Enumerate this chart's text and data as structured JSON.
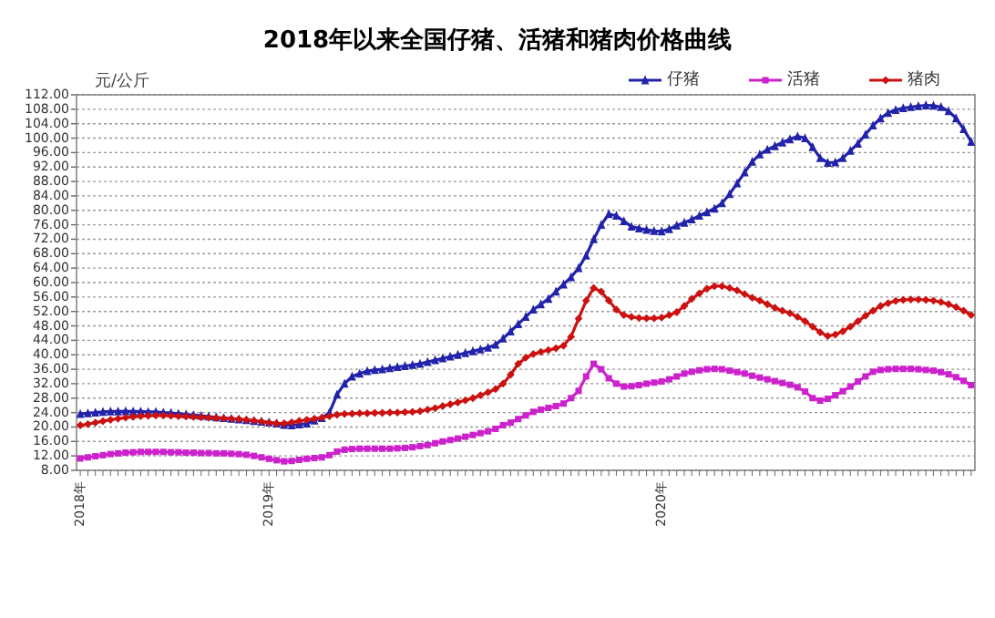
{
  "chart_data": {
    "type": "line",
    "title": "2018年以来全国仔猪、活猪和猪肉价格曲线",
    "ylabel": "元/公斤",
    "categories": [
      "2018年",
      null,
      null,
      null,
      null,
      null,
      null,
      null,
      null,
      null,
      null,
      null,
      null,
      null,
      null,
      null,
      null,
      null,
      null,
      null,
      null,
      null,
      null,
      null,
      null,
      "2019年",
      null,
      null,
      null,
      null,
      null,
      null,
      null,
      null,
      null,
      null,
      null,
      null,
      null,
      null,
      null,
      null,
      null,
      null,
      null,
      null,
      null,
      null,
      null,
      null,
      null,
      null,
      null,
      null,
      null,
      null,
      null,
      null,
      null,
      null,
      null,
      null,
      null,
      null,
      null,
      null,
      null,
      null,
      null,
      null,
      null,
      null,
      null,
      null,
      null,
      null,
      null,
      "2020年",
      null,
      null,
      null,
      null,
      null,
      null,
      null,
      null,
      null,
      null,
      null,
      null,
      null,
      null,
      null,
      null,
      null,
      null,
      null,
      null,
      null,
      null,
      null,
      null,
      null,
      null,
      null,
      null,
      null,
      null,
      null,
      null,
      null,
      null,
      null,
      null,
      null,
      null,
      null,
      null,
      null
    ],
    "ylim": [
      8,
      112
    ],
    "yticks": [
      {
        "value": 8,
        "label": "8.00"
      },
      {
        "value": 12,
        "label": "12.00"
      },
      {
        "value": 16,
        "label": "16.00"
      },
      {
        "value": 20,
        "label": "20.00"
      },
      {
        "value": 24,
        "label": "24.00"
      },
      {
        "value": 28,
        "label": "28.00"
      },
      {
        "value": 32,
        "label": "32.00"
      },
      {
        "value": 36,
        "label": "36.00"
      },
      {
        "value": 40,
        "label": "40.00"
      },
      {
        "value": 44,
        "label": "44.00"
      },
      {
        "value": 48,
        "label": "48.00"
      },
      {
        "value": 52,
        "label": "52.00"
      },
      {
        "value": 56,
        "label": "56.00"
      },
      {
        "value": 60,
        "label": "60.00"
      },
      {
        "value": 64,
        "label": "64.00"
      },
      {
        "value": 68,
        "label": "68.00"
      },
      {
        "value": 72,
        "label": "72.00"
      },
      {
        "value": 76,
        "label": "76.00"
      },
      {
        "value": 80,
        "label": "80.00"
      },
      {
        "value": 84,
        "label": "84.00"
      },
      {
        "value": 88,
        "label": "88.00"
      },
      {
        "value": 92,
        "label": "92.00"
      },
      {
        "value": 96,
        "label": "96.00"
      },
      {
        "value": 100,
        "label": "100.00"
      },
      {
        "value": 104,
        "label": "104.00"
      },
      {
        "value": 108,
        "label": "108.00"
      },
      {
        "value": 112,
        "label": "112.00"
      }
    ],
    "grid": "y",
    "legend": "top right",
    "series": [
      {
        "name": "仔猪",
        "color": "#2222aa",
        "marker": "triangle",
        "values": [
          23.6,
          23.8,
          24.0,
          24.2,
          24.3,
          24.3,
          24.4,
          24.3,
          24.3,
          24.2,
          24.2,
          24.0,
          23.9,
          23.7,
          23.5,
          23.3,
          23.1,
          22.9,
          22.7,
          22.5,
          22.3,
          22.1,
          21.9,
          21.7,
          21.5,
          21.3,
          21.0,
          20.6,
          20.5,
          20.7,
          21.0,
          21.8,
          22.5,
          24.0,
          29.0,
          32.0,
          34.0,
          34.8,
          35.5,
          35.8,
          36.0,
          36.3,
          36.6,
          36.9,
          37.2,
          37.5,
          38.0,
          38.5,
          39.0,
          39.5,
          40.0,
          40.5,
          41.0,
          41.5,
          42.0,
          42.8,
          44.5,
          46.5,
          48.5,
          50.5,
          52.5,
          54.0,
          55.5,
          57.5,
          59.5,
          61.5,
          64.0,
          67.5,
          72.0,
          76.0,
          79.0,
          78.5,
          77.0,
          75.5,
          75.0,
          74.6,
          74.3,
          74.2,
          74.8,
          75.8,
          76.6,
          77.5,
          78.5,
          79.5,
          80.5,
          82.0,
          84.5,
          87.5,
          90.5,
          93.5,
          95.5,
          96.8,
          97.8,
          98.8,
          99.7,
          100.5,
          100.0,
          97.5,
          94.5,
          93.2,
          93.3,
          94.5,
          96.5,
          98.5,
          101.0,
          103.5,
          105.5,
          107.0,
          107.8,
          108.3,
          108.6,
          108.9,
          109.1,
          109.0,
          108.6,
          107.5,
          105.5,
          102.5,
          99.0
        ]
      },
      {
        "name": "活猪",
        "color": "#cc22cc",
        "marker": "square",
        "values": [
          11.3,
          11.6,
          11.9,
          12.2,
          12.5,
          12.7,
          12.9,
          13.0,
          13.1,
          13.1,
          13.1,
          13.1,
          13.0,
          13.0,
          12.9,
          12.9,
          12.8,
          12.8,
          12.7,
          12.7,
          12.6,
          12.5,
          12.3,
          12.0,
          11.6,
          11.2,
          10.8,
          10.5,
          10.6,
          10.9,
          11.2,
          11.4,
          11.6,
          12.2,
          13.2,
          13.7,
          13.9,
          14.0,
          14.0,
          14.0,
          14.0,
          14.0,
          14.1,
          14.2,
          14.4,
          14.7,
          15.0,
          15.5,
          16.0,
          16.4,
          16.8,
          17.3,
          17.8,
          18.3,
          18.8,
          19.5,
          20.5,
          21.2,
          22.2,
          23.2,
          24.2,
          24.8,
          25.3,
          25.8,
          26.5,
          28.0,
          30.0,
          34.0,
          37.5,
          36.0,
          33.5,
          32.0,
          31.2,
          31.3,
          31.6,
          32.0,
          32.3,
          32.6,
          33.2,
          34.0,
          34.8,
          35.3,
          35.7,
          36.0,
          36.1,
          36.0,
          35.6,
          35.2,
          34.8,
          34.2,
          33.7,
          33.2,
          32.7,
          32.2,
          31.7,
          31.0,
          29.8,
          28.0,
          27.3,
          27.8,
          28.8,
          29.9,
          31.2,
          32.6,
          34.0,
          35.3,
          35.8,
          36.0,
          36.1,
          36.1,
          36.1,
          36.0,
          35.8,
          35.6,
          35.2,
          34.6,
          33.8,
          32.8,
          31.6
        ]
      },
      {
        "name": "猪肉",
        "color": "#cc1111",
        "marker": "diamond",
        "values": [
          20.5,
          20.8,
          21.2,
          21.6,
          22.0,
          22.3,
          22.6,
          22.8,
          23.0,
          23.1,
          23.2,
          23.2,
          23.1,
          23.0,
          22.9,
          22.8,
          22.7,
          22.6,
          22.5,
          22.4,
          22.3,
          22.2,
          22.0,
          21.8,
          21.5,
          21.2,
          21.0,
          21.0,
          21.3,
          21.7,
          22.0,
          22.3,
          22.6,
          23.0,
          23.4,
          23.6,
          23.7,
          23.8,
          23.8,
          23.9,
          23.9,
          24.0,
          24.0,
          24.1,
          24.2,
          24.4,
          24.8,
          25.2,
          25.8,
          26.3,
          26.8,
          27.4,
          28.0,
          28.8,
          29.6,
          30.5,
          32.0,
          34.5,
          37.5,
          39.2,
          40.2,
          40.8,
          41.3,
          41.8,
          42.5,
          45.0,
          50.0,
          55.0,
          58.5,
          57.5,
          55.0,
          52.5,
          51.0,
          50.5,
          50.2,
          50.1,
          50.1,
          50.3,
          51.0,
          51.8,
          53.5,
          55.5,
          57.0,
          58.3,
          59.0,
          59.0,
          58.5,
          57.8,
          56.8,
          55.8,
          55.0,
          54.0,
          53.0,
          52.2,
          51.5,
          50.5,
          49.3,
          47.8,
          46.2,
          45.2,
          45.6,
          46.5,
          47.8,
          49.3,
          50.8,
          52.2,
          53.5,
          54.3,
          54.9,
          55.2,
          55.3,
          55.3,
          55.2,
          55.0,
          54.6,
          54.0,
          53.2,
          52.2,
          51.0
        ]
      }
    ]
  }
}
